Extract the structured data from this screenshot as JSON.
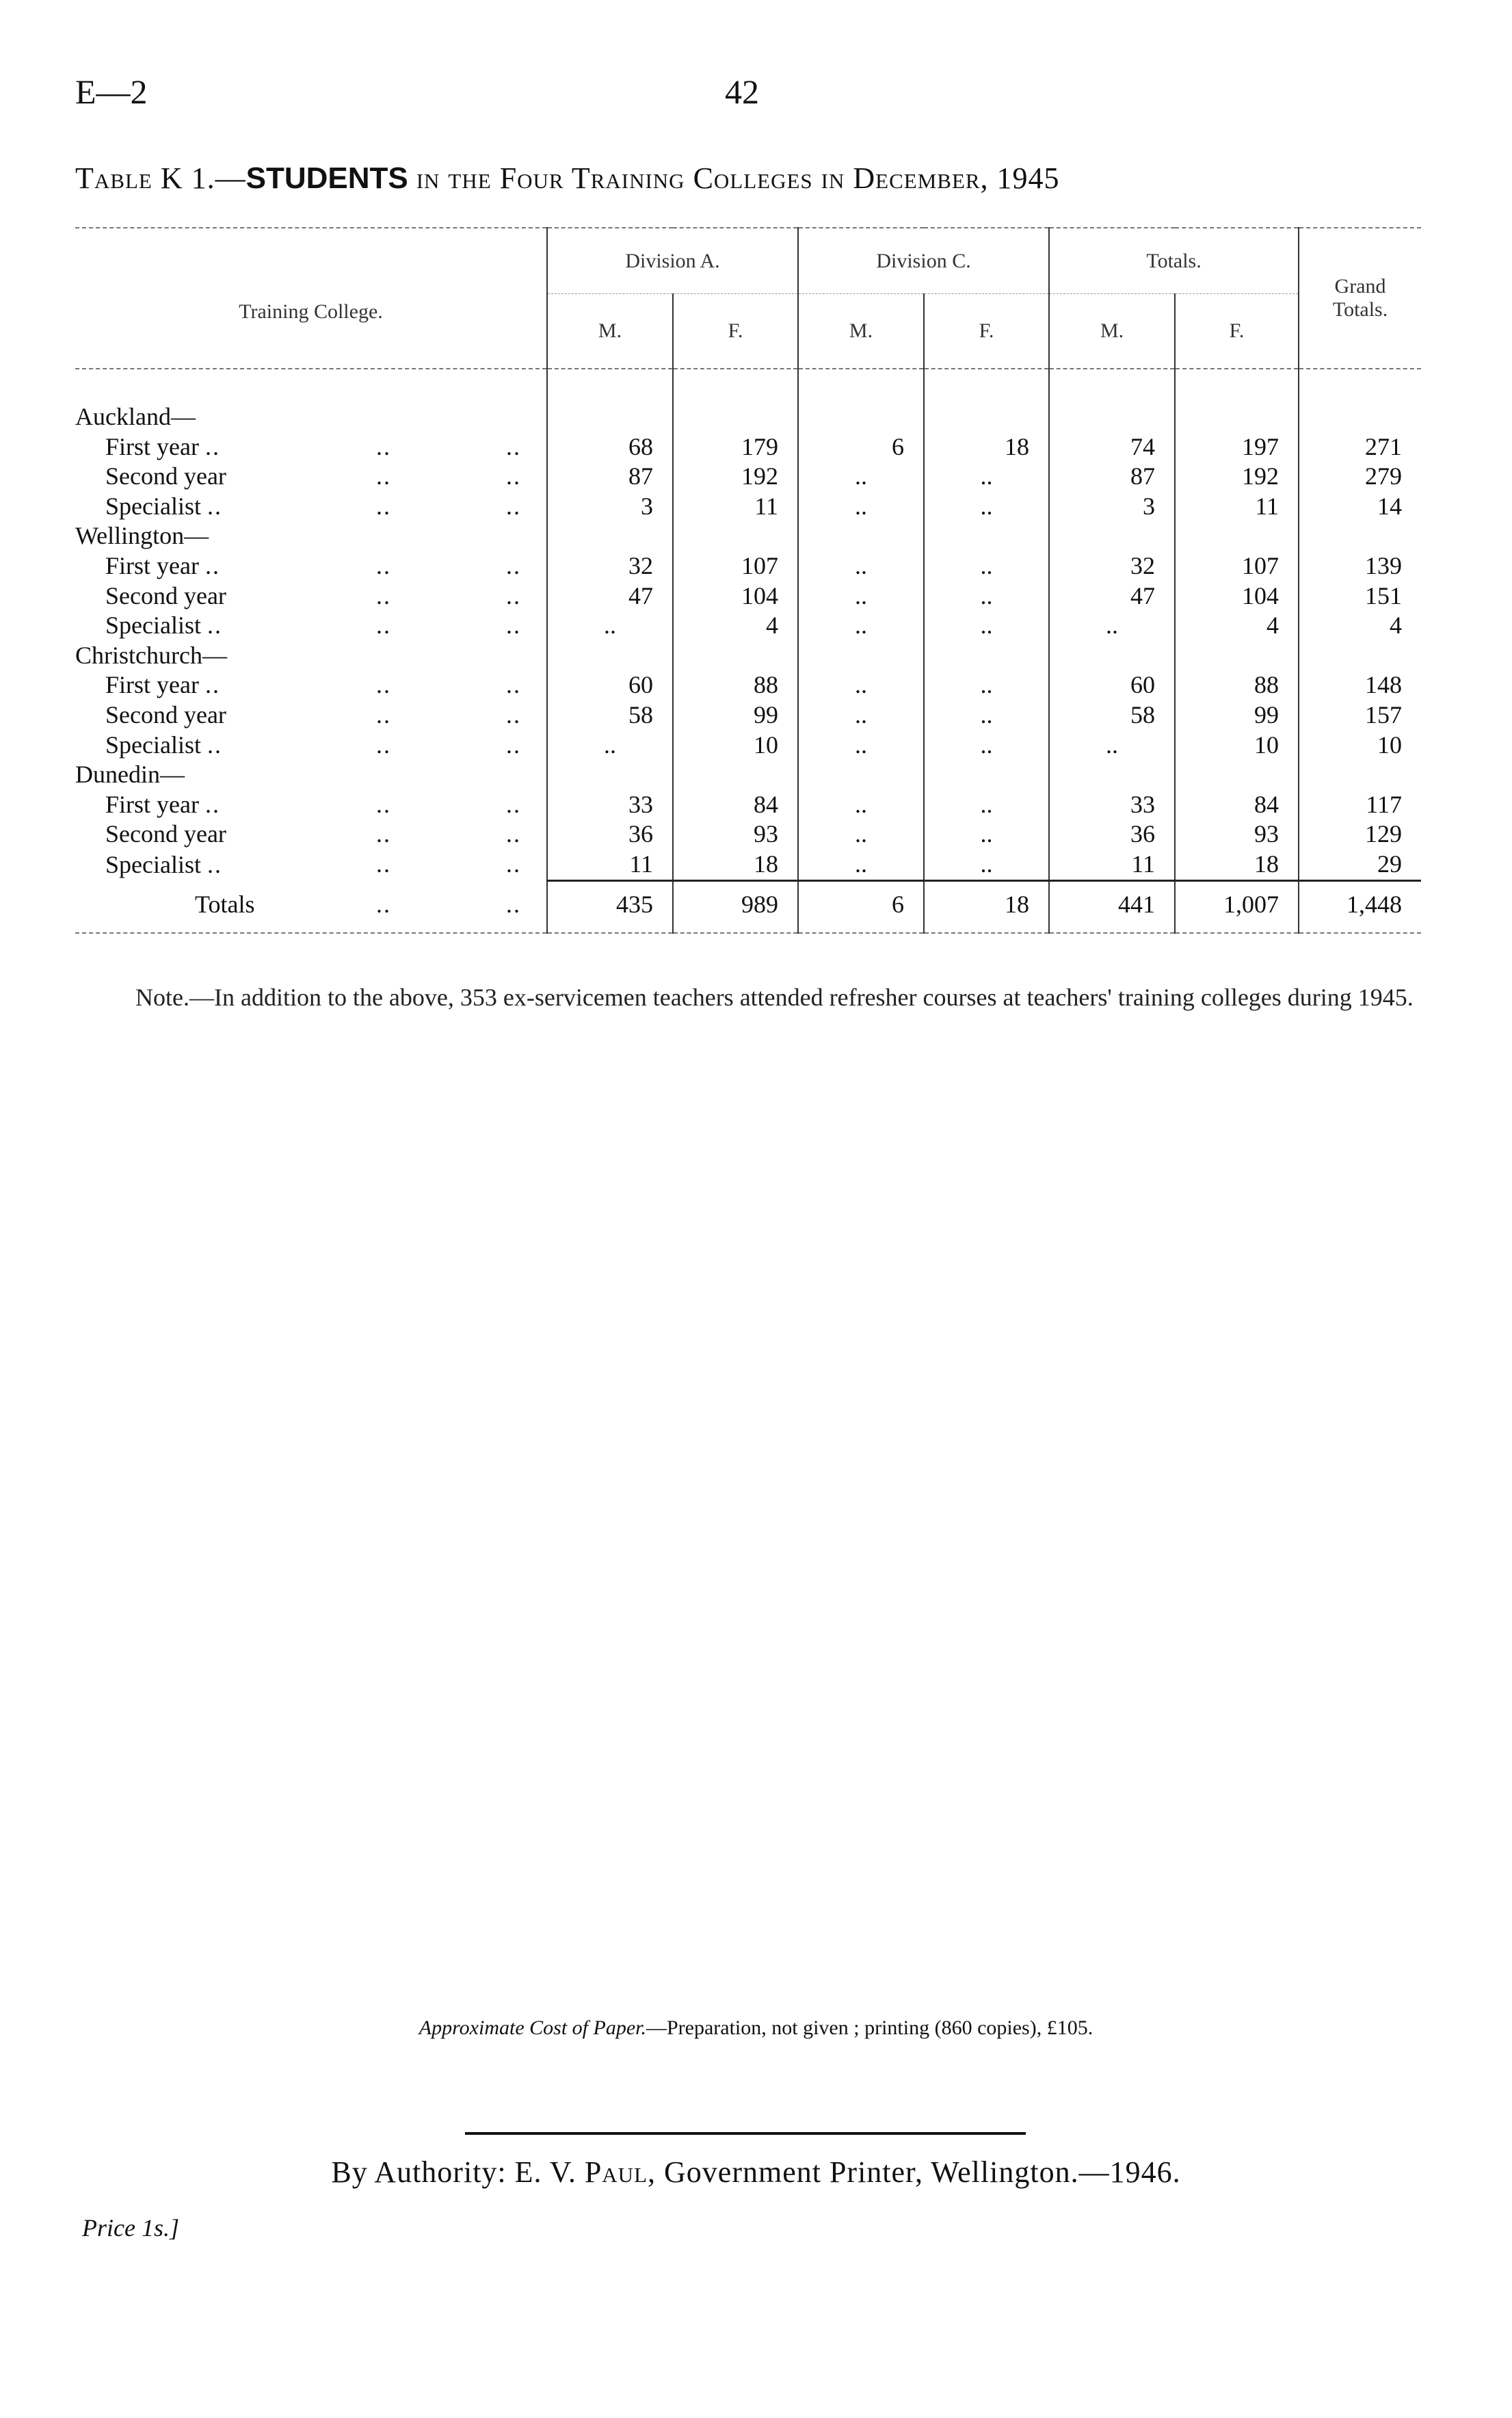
{
  "header": {
    "code": "E—2",
    "page_number": "42"
  },
  "title": {
    "prefix": "Table K 1.—",
    "bold": "STUDENTS",
    "suffix": " in the Four Training Colleges in December, 1945"
  },
  "table": {
    "headers": {
      "college": "Training College.",
      "division_a": "Division A.",
      "division_c": "Division C.",
      "totals": "Totals.",
      "grand_totals": "Grand Totals.",
      "m": "M.",
      "f": "F."
    },
    "rows": [
      {
        "label": "Auckland—",
        "group": true
      },
      {
        "label": "First year",
        "lead": "..",
        "cells": [
          "68",
          "179",
          "6",
          "18",
          "74",
          "197",
          "271"
        ]
      },
      {
        "label": "Second year",
        "lead": "",
        "cells": [
          "87",
          "192",
          "..",
          "..",
          "87",
          "192",
          "279"
        ]
      },
      {
        "label": "Specialist",
        "lead": "..",
        "cells": [
          "3",
          "11",
          "..",
          "..",
          "3",
          "11",
          "14"
        ]
      },
      {
        "label": "Wellington—",
        "group": true
      },
      {
        "label": "First year",
        "lead": "..",
        "cells": [
          "32",
          "107",
          "..",
          "..",
          "32",
          "107",
          "139"
        ]
      },
      {
        "label": "Second year",
        "lead": "",
        "cells": [
          "47",
          "104",
          "..",
          "..",
          "47",
          "104",
          "151"
        ]
      },
      {
        "label": "Specialist",
        "lead": "..",
        "cells": [
          "..",
          "4",
          "..",
          "..",
          "..",
          "4",
          "4"
        ]
      },
      {
        "label": "Christchurch—",
        "group": true
      },
      {
        "label": "First year",
        "lead": "..",
        "cells": [
          "60",
          "88",
          "..",
          "..",
          "60",
          "88",
          "148"
        ]
      },
      {
        "label": "Second year",
        "lead": "",
        "cells": [
          "58",
          "99",
          "..",
          "..",
          "58",
          "99",
          "157"
        ]
      },
      {
        "label": "Specialist",
        "lead": "..",
        "cells": [
          "..",
          "10",
          "..",
          "..",
          "..",
          "10",
          "10"
        ]
      },
      {
        "label": "Dunedin—",
        "group": true
      },
      {
        "label": "First year",
        "lead": "..",
        "cells": [
          "33",
          "84",
          "..",
          "..",
          "33",
          "84",
          "117"
        ]
      },
      {
        "label": "Second year",
        "lead": "",
        "cells": [
          "36",
          "93",
          "..",
          "..",
          "36",
          "93",
          "129"
        ]
      },
      {
        "label": "Specialist",
        "lead": "..",
        "cells": [
          "11",
          "18",
          "..",
          "..",
          "11",
          "18",
          "29"
        ]
      }
    ],
    "totals_row": {
      "label": "Totals",
      "cells": [
        "435",
        "989",
        "6",
        "18",
        "441",
        "1,007",
        "1,448"
      ]
    }
  },
  "note": "Note.—In addition to the above, 353 ex-servicemen teachers attended refresher courses at teachers' training colleges during 1945.",
  "footer": {
    "cost_italic": "Approximate Cost of Paper.",
    "cost_text": "—Preparation, not given ;  printing (860 copies), £105.",
    "authority_prefix": "By Authority:  E. V. ",
    "authority_name": "Paul",
    "authority_suffix": ", Government Printer, Wellington.—1946.",
    "price": "Price 1s.]"
  }
}
